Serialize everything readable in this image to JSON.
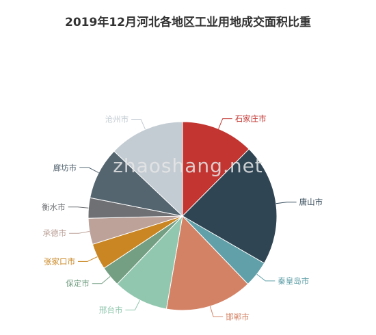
{
  "chart_data": {
    "type": "pie",
    "title": "2019年12月河北各地区工业用地成交面积比重",
    "watermark": "zhaoshang.net",
    "slices": [
      {
        "label": "石家庄市",
        "value": 12.5,
        "color": "#c23531"
      },
      {
        "label": "唐山市",
        "value": 21.0,
        "color": "#2f4554"
      },
      {
        "label": "秦皇岛市",
        "value": 4.5,
        "color": "#61a0a8"
      },
      {
        "label": "邯郸市",
        "value": 15.0,
        "color": "#d48265"
      },
      {
        "label": "邢台市",
        "value": 9.5,
        "color": "#91c7ae"
      },
      {
        "label": "保定市",
        "value": 3.5,
        "color": "#749f83"
      },
      {
        "label": "张家口市",
        "value": 4.5,
        "color": "#ca8622"
      },
      {
        "label": "承德市",
        "value": 4.5,
        "color": "#bda29a"
      },
      {
        "label": "衡水市",
        "value": 3.5,
        "color": "#6e7074"
      },
      {
        "label": "廊坊市",
        "value": 9.0,
        "color": "#546570"
      },
      {
        "label": "沧州市",
        "value": 13.0,
        "color": "#c4ccd3"
      }
    ]
  }
}
